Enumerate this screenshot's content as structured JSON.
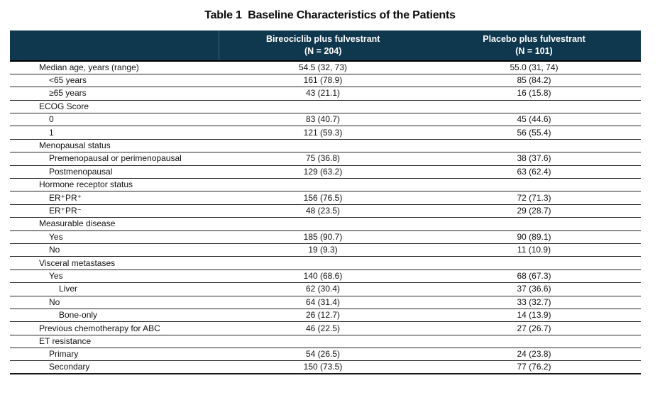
{
  "title": "Table 1  Baseline Characteristics of the Patients",
  "colors": {
    "header_bg": "#0F374D",
    "header_text": "#FFFFFF",
    "row_line": "#242424"
  },
  "table": {
    "columns": [
      {
        "title": "Bireociclib plus fulvestrant",
        "n": "(N = 204)"
      },
      {
        "title": "Placebo plus fulvestrant",
        "n": "(N = 101)"
      }
    ],
    "rows": [
      {
        "label": "Median age, years (range)",
        "indent": 0,
        "c1": "54.5 (32, 73)",
        "c2": "55.0 (31, 74)"
      },
      {
        "label": "<65 years",
        "indent": 1,
        "c1": "161 (78.9)",
        "c2": "85 (84.2)"
      },
      {
        "label": "≥65 years",
        "indent": 1,
        "c1": "43 (21.1)",
        "c2": "16 (15.8)"
      },
      {
        "label": "ECOG Score",
        "indent": 0,
        "c1": "",
        "c2": ""
      },
      {
        "label": "0",
        "indent": 1,
        "c1": "83 (40.7)",
        "c2": "45 (44.6)"
      },
      {
        "label": "1",
        "indent": 1,
        "c1": "121 (59.3)",
        "c2": "56 (55.4)"
      },
      {
        "label": "Menopausal status",
        "indent": 0,
        "c1": "",
        "c2": ""
      },
      {
        "label": "Premenopausal or perimenopausal",
        "indent": 1,
        "c1": "75 (36.8)",
        "c2": "38 (37.6)"
      },
      {
        "label": "Postmenopausal",
        "indent": 1,
        "c1": "129 (63.2)",
        "c2": "63 (62.4)"
      },
      {
        "label": "Hormone receptor status",
        "indent": 0,
        "c1": "",
        "c2": ""
      },
      {
        "label": "ER⁺PR⁺",
        "indent": 1,
        "c1": "156 (76.5)",
        "c2": "72 (71.3)"
      },
      {
        "label": "ER⁺PR⁻",
        "indent": 1,
        "c1": "48 (23.5)",
        "c2": "29 (28.7)"
      },
      {
        "label": "Measurable disease",
        "indent": 0,
        "c1": "",
        "c2": ""
      },
      {
        "label": "Yes",
        "indent": 1,
        "c1": "185 (90.7)",
        "c2": "90 (89.1)"
      },
      {
        "label": "No",
        "indent": 1,
        "c1": "19 (9.3)",
        "c2": "11 (10.9)"
      },
      {
        "label": "Visceral metastases",
        "indent": 0,
        "c1": "",
        "c2": ""
      },
      {
        "label": "Yes",
        "indent": 1,
        "c1": "140 (68.6)",
        "c2": "68 (67.3)"
      },
      {
        "label": "Liver",
        "indent": 2,
        "c1": "62 (30.4)",
        "c2": "37 (36.6)"
      },
      {
        "label": "No",
        "indent": 1,
        "c1": "64 (31.4)",
        "c2": "33 (32.7)"
      },
      {
        "label": "Bone-only",
        "indent": 2,
        "c1": "26 (12.7)",
        "c2": "14 (13.9)"
      },
      {
        "label": "Previous chemotherapy for ABC",
        "indent": 0,
        "c1": "46 (22.5)",
        "c2": "27 (26.7)"
      },
      {
        "label": "ET resistance",
        "indent": 0,
        "c1": "",
        "c2": ""
      },
      {
        "label": "Primary",
        "indent": 1,
        "c1": "54 (26.5)",
        "c2": "24 (23.8)"
      },
      {
        "label": "Secondary",
        "indent": 1,
        "c1": "150 (73.5)",
        "c2": "77 (76.2)"
      }
    ]
  }
}
